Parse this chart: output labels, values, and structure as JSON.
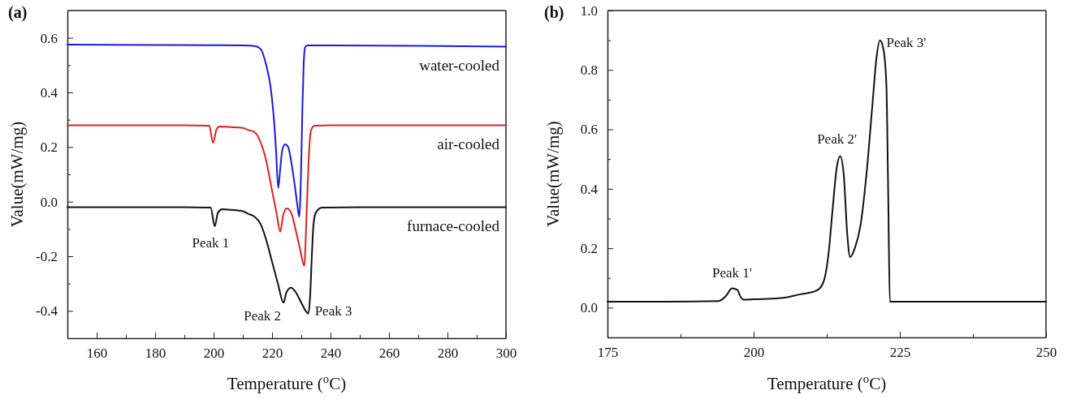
{
  "chart_data": [
    {
      "type": "line",
      "title": "(a)",
      "xlabel": "Temperature ($^{o}$C)",
      "ylabel": "Value(mW/mg)",
      "xlim": [
        150,
        300
      ],
      "ylim": [
        -0.5,
        0.7
      ],
      "xticks": [
        {
          "value": 150,
          "label": null
        },
        160,
        {
          "value": 170,
          "label": null
        },
        180,
        {
          "value": 190,
          "label": null
        },
        200,
        {
          "value": 210,
          "label": null
        },
        220,
        {
          "value": 230,
          "label": null
        },
        240,
        {
          "value": 250,
          "label": null
        },
        260,
        {
          "value": 270,
          "label": null
        },
        280,
        {
          "value": 290,
          "label": null
        },
        300
      ],
      "yticks": [
        {
          "value": -0.5,
          "label": null
        },
        {
          "value": -0.4,
          "label": "-0.4"
        },
        {
          "value": -0.3,
          "label": null
        },
        {
          "value": -0.2,
          "label": "-0.2"
        },
        {
          "value": -0.1,
          "label": null
        },
        {
          "value": 0,
          "label": "0.0"
        },
        {
          "value": 0.1,
          "label": null
        },
        {
          "value": 0.2,
          "label": "0.2"
        },
        {
          "value": 0.3,
          "label": null
        },
        {
          "value": 0.4,
          "label": "0.4"
        },
        {
          "value": 0.5,
          "label": null
        },
        {
          "value": 0.6,
          "label": "0.6"
        }
      ],
      "series": [
        {
          "name": "water-cooled",
          "color": "#1a1adf",
          "x": [
            150,
            180,
            200,
            210,
            214,
            216,
            218,
            219.5,
            220.5,
            221.3,
            222.1,
            222.8,
            223.5,
            224.5,
            225.5,
            226.5,
            227.5,
            228.5,
            229.3,
            229.9,
            230.4,
            230.8,
            231.3,
            232,
            240,
            270,
            300
          ],
          "values": [
            0.575,
            0.574,
            0.573,
            0.572,
            0.57,
            0.56,
            0.5,
            0.42,
            0.32,
            0.2,
            0.05,
            0.12,
            0.19,
            0.21,
            0.2,
            0.15,
            0.08,
            0.0,
            -0.055,
            0.1,
            0.35,
            0.5,
            0.565,
            0.572,
            0.572,
            0.571,
            0.568
          ]
        },
        {
          "name": "air-cooled",
          "color": "#e02020",
          "x": [
            150,
            190,
            198.5,
            199.8,
            201,
            202,
            206,
            210,
            212,
            214,
            216,
            218,
            220,
            221.5,
            222.8,
            223.8,
            225,
            226.5,
            228,
            229.5,
            231,
            231.8,
            232.5,
            233.3,
            234.5,
            240,
            300
          ],
          "values": [
            0.28,
            0.28,
            0.278,
            0.215,
            0.265,
            0.275,
            0.273,
            0.27,
            0.262,
            0.255,
            0.22,
            0.15,
            0.04,
            -0.04,
            -0.11,
            -0.05,
            -0.025,
            -0.04,
            -0.1,
            -0.17,
            -0.235,
            -0.05,
            0.15,
            0.26,
            0.278,
            0.28,
            0.28
          ]
        },
        {
          "name": "furnace-cooled",
          "color": "#111111",
          "x": [
            150,
            190,
            199,
            200.4,
            201.5,
            203,
            206,
            210,
            212,
            214,
            216,
            218,
            220,
            222,
            223.9,
            225,
            226.5,
            228,
            230,
            231.5,
            232.4,
            233,
            233.6,
            234.2,
            235,
            237,
            250,
            300
          ],
          "values": [
            -0.02,
            -0.02,
            -0.022,
            -0.09,
            -0.04,
            -0.028,
            -0.03,
            -0.035,
            -0.045,
            -0.055,
            -0.08,
            -0.14,
            -0.22,
            -0.3,
            -0.37,
            -0.33,
            -0.315,
            -0.33,
            -0.37,
            -0.4,
            -0.41,
            -0.35,
            -0.2,
            -0.08,
            -0.04,
            -0.022,
            -0.02,
            -0.02
          ]
        }
      ],
      "annotations": [
        {
          "text": "Peak 1",
          "x": 200.4,
          "y": -0.09
        },
        {
          "text": "Peak 2",
          "x": 223.9,
          "y": -0.37
        },
        {
          "text": "Peak 3",
          "x": 232.4,
          "y": -0.41
        }
      ]
    },
    {
      "type": "line",
      "title": "(b)",
      "xlabel": "Temperature ($^{o}$C)",
      "ylabel": "Value(mW/mg)",
      "xlim": [
        175,
        250
      ],
      "ylim": [
        -0.1,
        1.0
      ],
      "xticks": [
        175,
        {
          "value": 187.5,
          "label": null
        },
        200,
        {
          "value": 212.5,
          "label": null
        },
        225,
        {
          "value": 237.5,
          "label": null
        },
        250
      ],
      "yticks": [
        {
          "value": -0.1,
          "label": null
        },
        {
          "value": 0,
          "label": "0.0"
        },
        {
          "value": 0.1,
          "label": null
        },
        0.2,
        {
          "value": 0.3,
          "label": null
        },
        0.4,
        {
          "value": 0.5,
          "label": null
        },
        0.6,
        {
          "value": 0.7,
          "label": null
        },
        0.8,
        {
          "value": 0.9,
          "label": null
        },
        {
          "value": 1,
          "label": "1.0"
        }
      ],
      "series": [
        {
          "color": "#111111",
          "x": [
            175,
            185,
            194,
            195.3,
            196.3,
            197.2,
            197.8,
            198.3,
            200,
            205,
            208,
            209.5,
            211,
            212,
            212.8,
            213.5,
            214.2,
            214.8,
            215.4,
            216,
            216.5,
            217.3,
            218.3,
            219.3,
            220.3,
            221,
            221.6,
            222.2,
            222.7,
            223,
            223.3,
            230,
            250
          ],
          "values": [
            0.02,
            0.02,
            0.022,
            0.04,
            0.065,
            0.06,
            0.035,
            0.027,
            0.028,
            0.033,
            0.045,
            0.05,
            0.06,
            0.09,
            0.18,
            0.33,
            0.47,
            0.51,
            0.45,
            0.25,
            0.17,
            0.2,
            0.28,
            0.45,
            0.68,
            0.84,
            0.9,
            0.87,
            0.75,
            0.4,
            0.02,
            0.02,
            0.02
          ]
        }
      ],
      "annotations": [
        {
          "text": "Peak 1'",
          "x": 196.3,
          "y": 0.065
        },
        {
          "text": "Peak 2'",
          "x": 214.8,
          "y": 0.51
        },
        {
          "text": "Peak 3'",
          "x": 221.6,
          "y": 0.9
        }
      ]
    }
  ]
}
